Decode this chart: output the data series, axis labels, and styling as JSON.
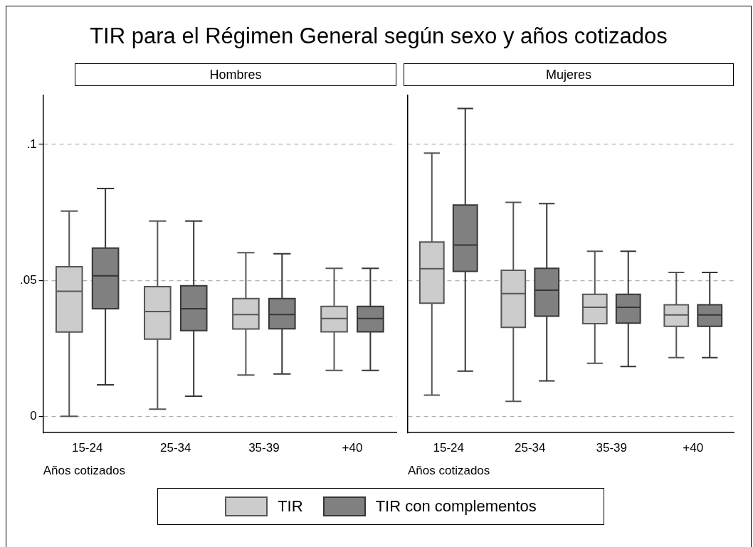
{
  "chart_data": [
    {
      "type": "box",
      "title": "TIR para el Régimen General según sexo y años cotizados",
      "subtitle": "Hombres",
      "xlabel": "Años cotizados",
      "categories": [
        "15-24",
        "25-34",
        "35-39",
        "+40"
      ],
      "ylim": [
        -0.006,
        0.118
      ],
      "yticks": [
        {
          "value": 0,
          "label": "0"
        },
        {
          "value": 0.05,
          "label": ".05"
        },
        {
          "value": 0.1,
          "label": ".1"
        }
      ],
      "grid": "y",
      "legend": "bottom",
      "series": [
        {
          "name": "TIR",
          "color": "#cccccc",
          "boxes": [
            {
              "low": 0.0,
              "q1": 0.031,
              "median": 0.046,
              "q3": 0.055,
              "high": 0.0755
            },
            {
              "low": 0.0026,
              "q1": 0.0284,
              "median": 0.0385,
              "q3": 0.0477,
              "high": 0.0718
            },
            {
              "low": 0.0152,
              "q1": 0.0321,
              "median": 0.0374,
              "q3": 0.0433,
              "high": 0.0602
            },
            {
              "low": 0.0169,
              "q1": 0.0311,
              "median": 0.036,
              "q3": 0.0404,
              "high": 0.0544
            }
          ]
        },
        {
          "name": "TIR con complementos",
          "color": "#808080",
          "boxes": [
            {
              "low": 0.0116,
              "q1": 0.0396,
              "median": 0.0517,
              "q3": 0.0619,
              "high": 0.0838
            },
            {
              "low": 0.0074,
              "q1": 0.0315,
              "median": 0.0396,
              "q3": 0.048,
              "high": 0.0718
            },
            {
              "low": 0.0156,
              "q1": 0.0322,
              "median": 0.0374,
              "q3": 0.0433,
              "high": 0.0598
            },
            {
              "low": 0.0169,
              "q1": 0.0311,
              "median": 0.036,
              "q3": 0.0404,
              "high": 0.0544
            }
          ]
        }
      ]
    },
    {
      "type": "box",
      "subtitle": "Mujeres",
      "xlabel": "Años cotizados",
      "categories": [
        "15-24",
        "25-34",
        "35-39",
        "+40"
      ],
      "ylim": [
        -0.006,
        0.118
      ],
      "yticks": [
        {
          "value": 0,
          "label": null
        },
        {
          "value": 0.05,
          "label": null
        },
        {
          "value": 0.1,
          "label": null
        }
      ],
      "grid": "y",
      "tick_labels": "x",
      "series": [
        {
          "color": "#cccccc",
          "boxes": [
            {
              "low": 0.0078,
              "q1": 0.0416,
              "median": 0.0543,
              "q3": 0.0641,
              "high": 0.0968
            },
            {
              "low": 0.0055,
              "q1": 0.0327,
              "median": 0.0451,
              "q3": 0.0537,
              "high": 0.0787
            },
            {
              "low": 0.0195,
              "q1": 0.0341,
              "median": 0.0401,
              "q3": 0.0449,
              "high": 0.0607
            },
            {
              "low": 0.0216,
              "q1": 0.0331,
              "median": 0.0373,
              "q3": 0.041,
              "high": 0.0529
            }
          ]
        },
        {
          "color": "#808080",
          "boxes": [
            {
              "low": 0.0166,
              "q1": 0.0533,
              "median": 0.063,
              "q3": 0.0777,
              "high": 0.1132
            },
            {
              "low": 0.013,
              "q1": 0.0368,
              "median": 0.0464,
              "q3": 0.0544,
              "high": 0.0782
            },
            {
              "low": 0.0183,
              "q1": 0.0343,
              "median": 0.0401,
              "q3": 0.0449,
              "high": 0.0607
            },
            {
              "low": 0.0216,
              "q1": 0.0331,
              "median": 0.0373,
              "q3": 0.041,
              "high": 0.0529
            }
          ]
        }
      ]
    }
  ]
}
